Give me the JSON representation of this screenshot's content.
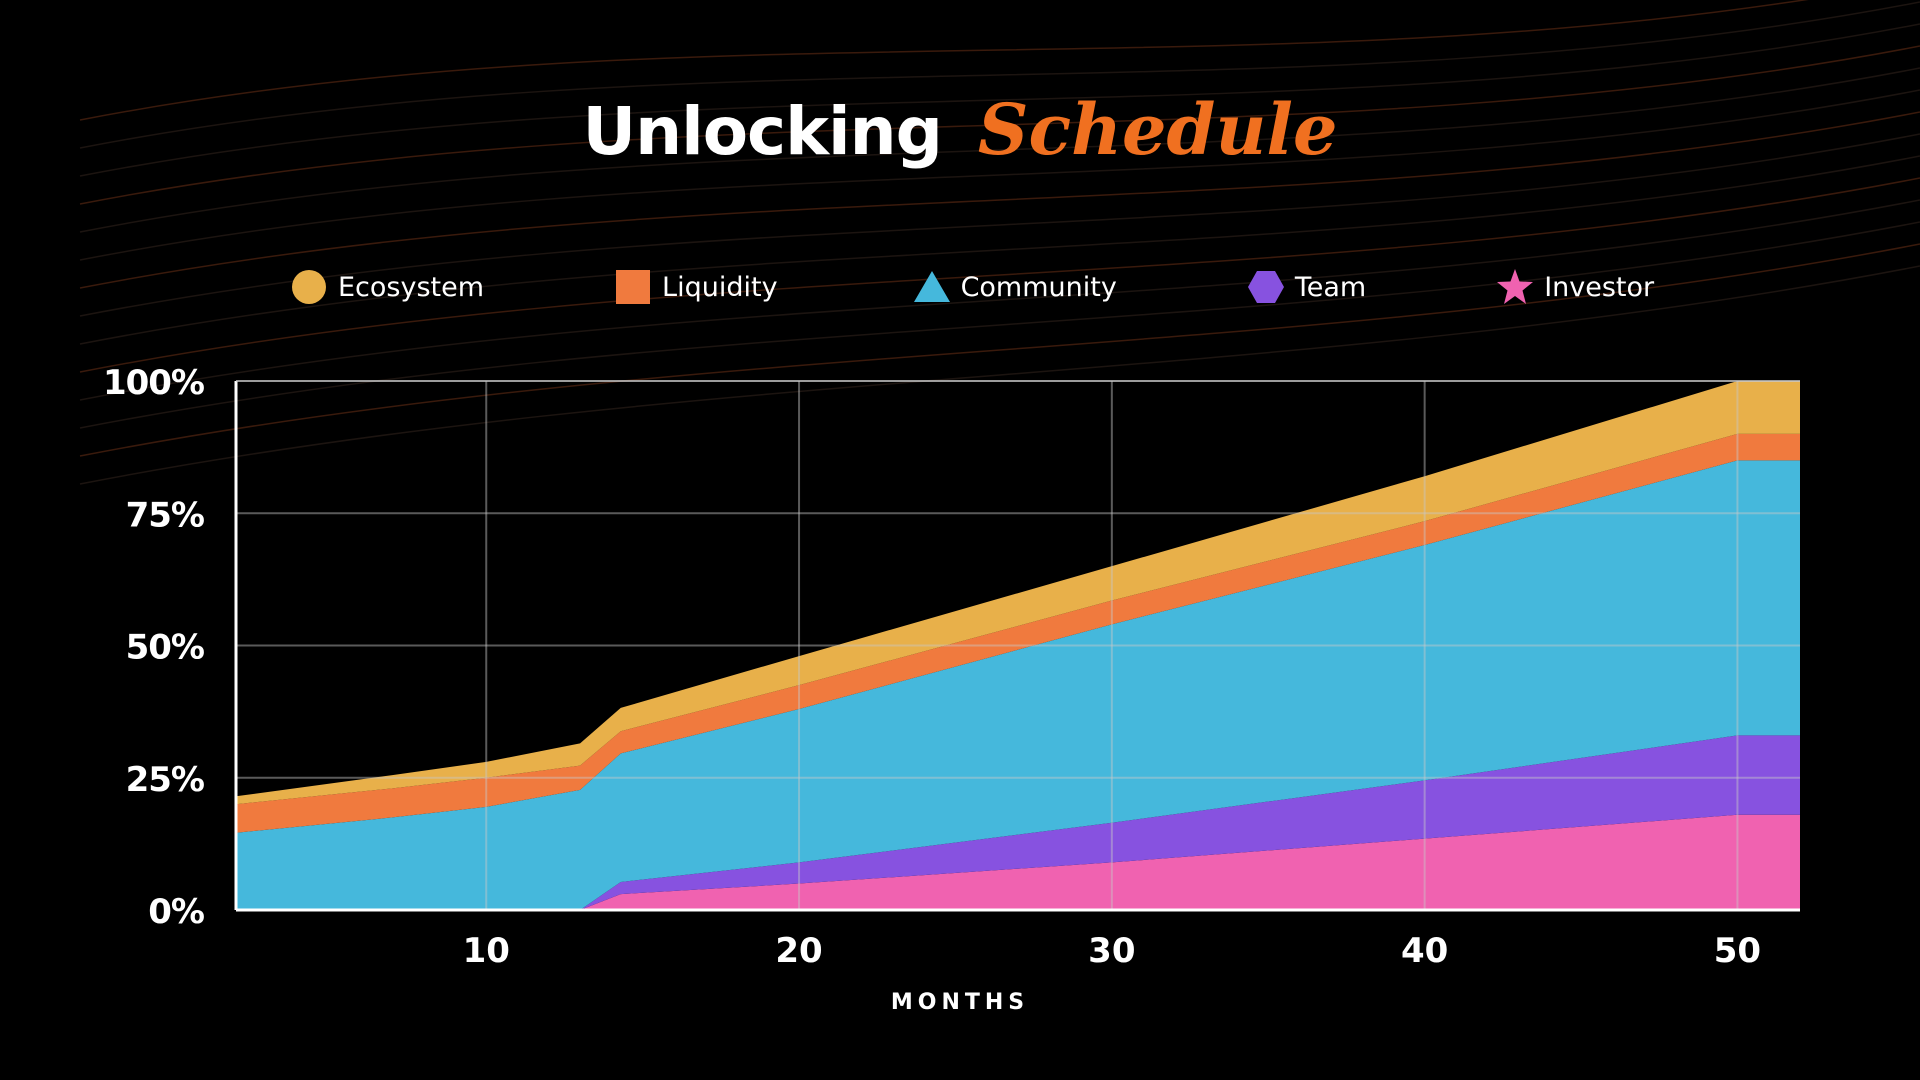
{
  "title": {
    "part1": "Unlocking",
    "part2": "Schedule"
  },
  "colors": {
    "title_accent": "#f07020",
    "background": "#000000"
  },
  "chart_data": {
    "type": "area",
    "stacked": true,
    "title": "Unlocking Schedule",
    "xlabel": "MONTHS",
    "ylabel": "",
    "x": [
      2,
      7,
      10,
      13,
      14.3,
      20,
      30,
      40,
      50,
      52
    ],
    "xlim": [
      2,
      52
    ],
    "ylim": [
      0,
      100
    ],
    "xticks": [
      10,
      20,
      30,
      40,
      50
    ],
    "xtick_labels": [
      "10",
      "20",
      "30",
      "40",
      "50"
    ],
    "yticks": [
      0,
      25,
      50,
      75,
      100
    ],
    "ytick_labels": [
      "0%",
      "25%",
      "50%",
      "75%",
      "100%"
    ],
    "grid": true,
    "legend_position": "top",
    "series": [
      {
        "name": "Investor",
        "marker": "star",
        "color": "#f062b0",
        "values": [
          0,
          0,
          0,
          0,
          3,
          5,
          9,
          13.5,
          18,
          18
        ]
      },
      {
        "name": "Team",
        "marker": "hexagon",
        "color": "#8752e0",
        "values": [
          0,
          0,
          0,
          0,
          2.3,
          4,
          7.5,
          11,
          15,
          15
        ]
      },
      {
        "name": "Community",
        "marker": "triangle",
        "color": "#45b8dc",
        "values": [
          14.6,
          17.5,
          19.5,
          22.7,
          24.3,
          29,
          37.5,
          44.5,
          52,
          52
        ]
      },
      {
        "name": "Liquidity",
        "marker": "square",
        "color": "#f07a3e",
        "values": [
          5.4,
          5.5,
          5.5,
          4.6,
          4.2,
          4.5,
          4.5,
          4.5,
          5,
          5
        ]
      },
      {
        "name": "Ecosystem",
        "marker": "circle",
        "color": "#e8b04a",
        "values": [
          1.5,
          2.5,
          3,
          4.2,
          4.4,
          5.5,
          6.5,
          8.5,
          10,
          10
        ]
      }
    ],
    "legend_order": [
      "Ecosystem",
      "Liquidity",
      "Community",
      "Team",
      "Investor"
    ]
  }
}
